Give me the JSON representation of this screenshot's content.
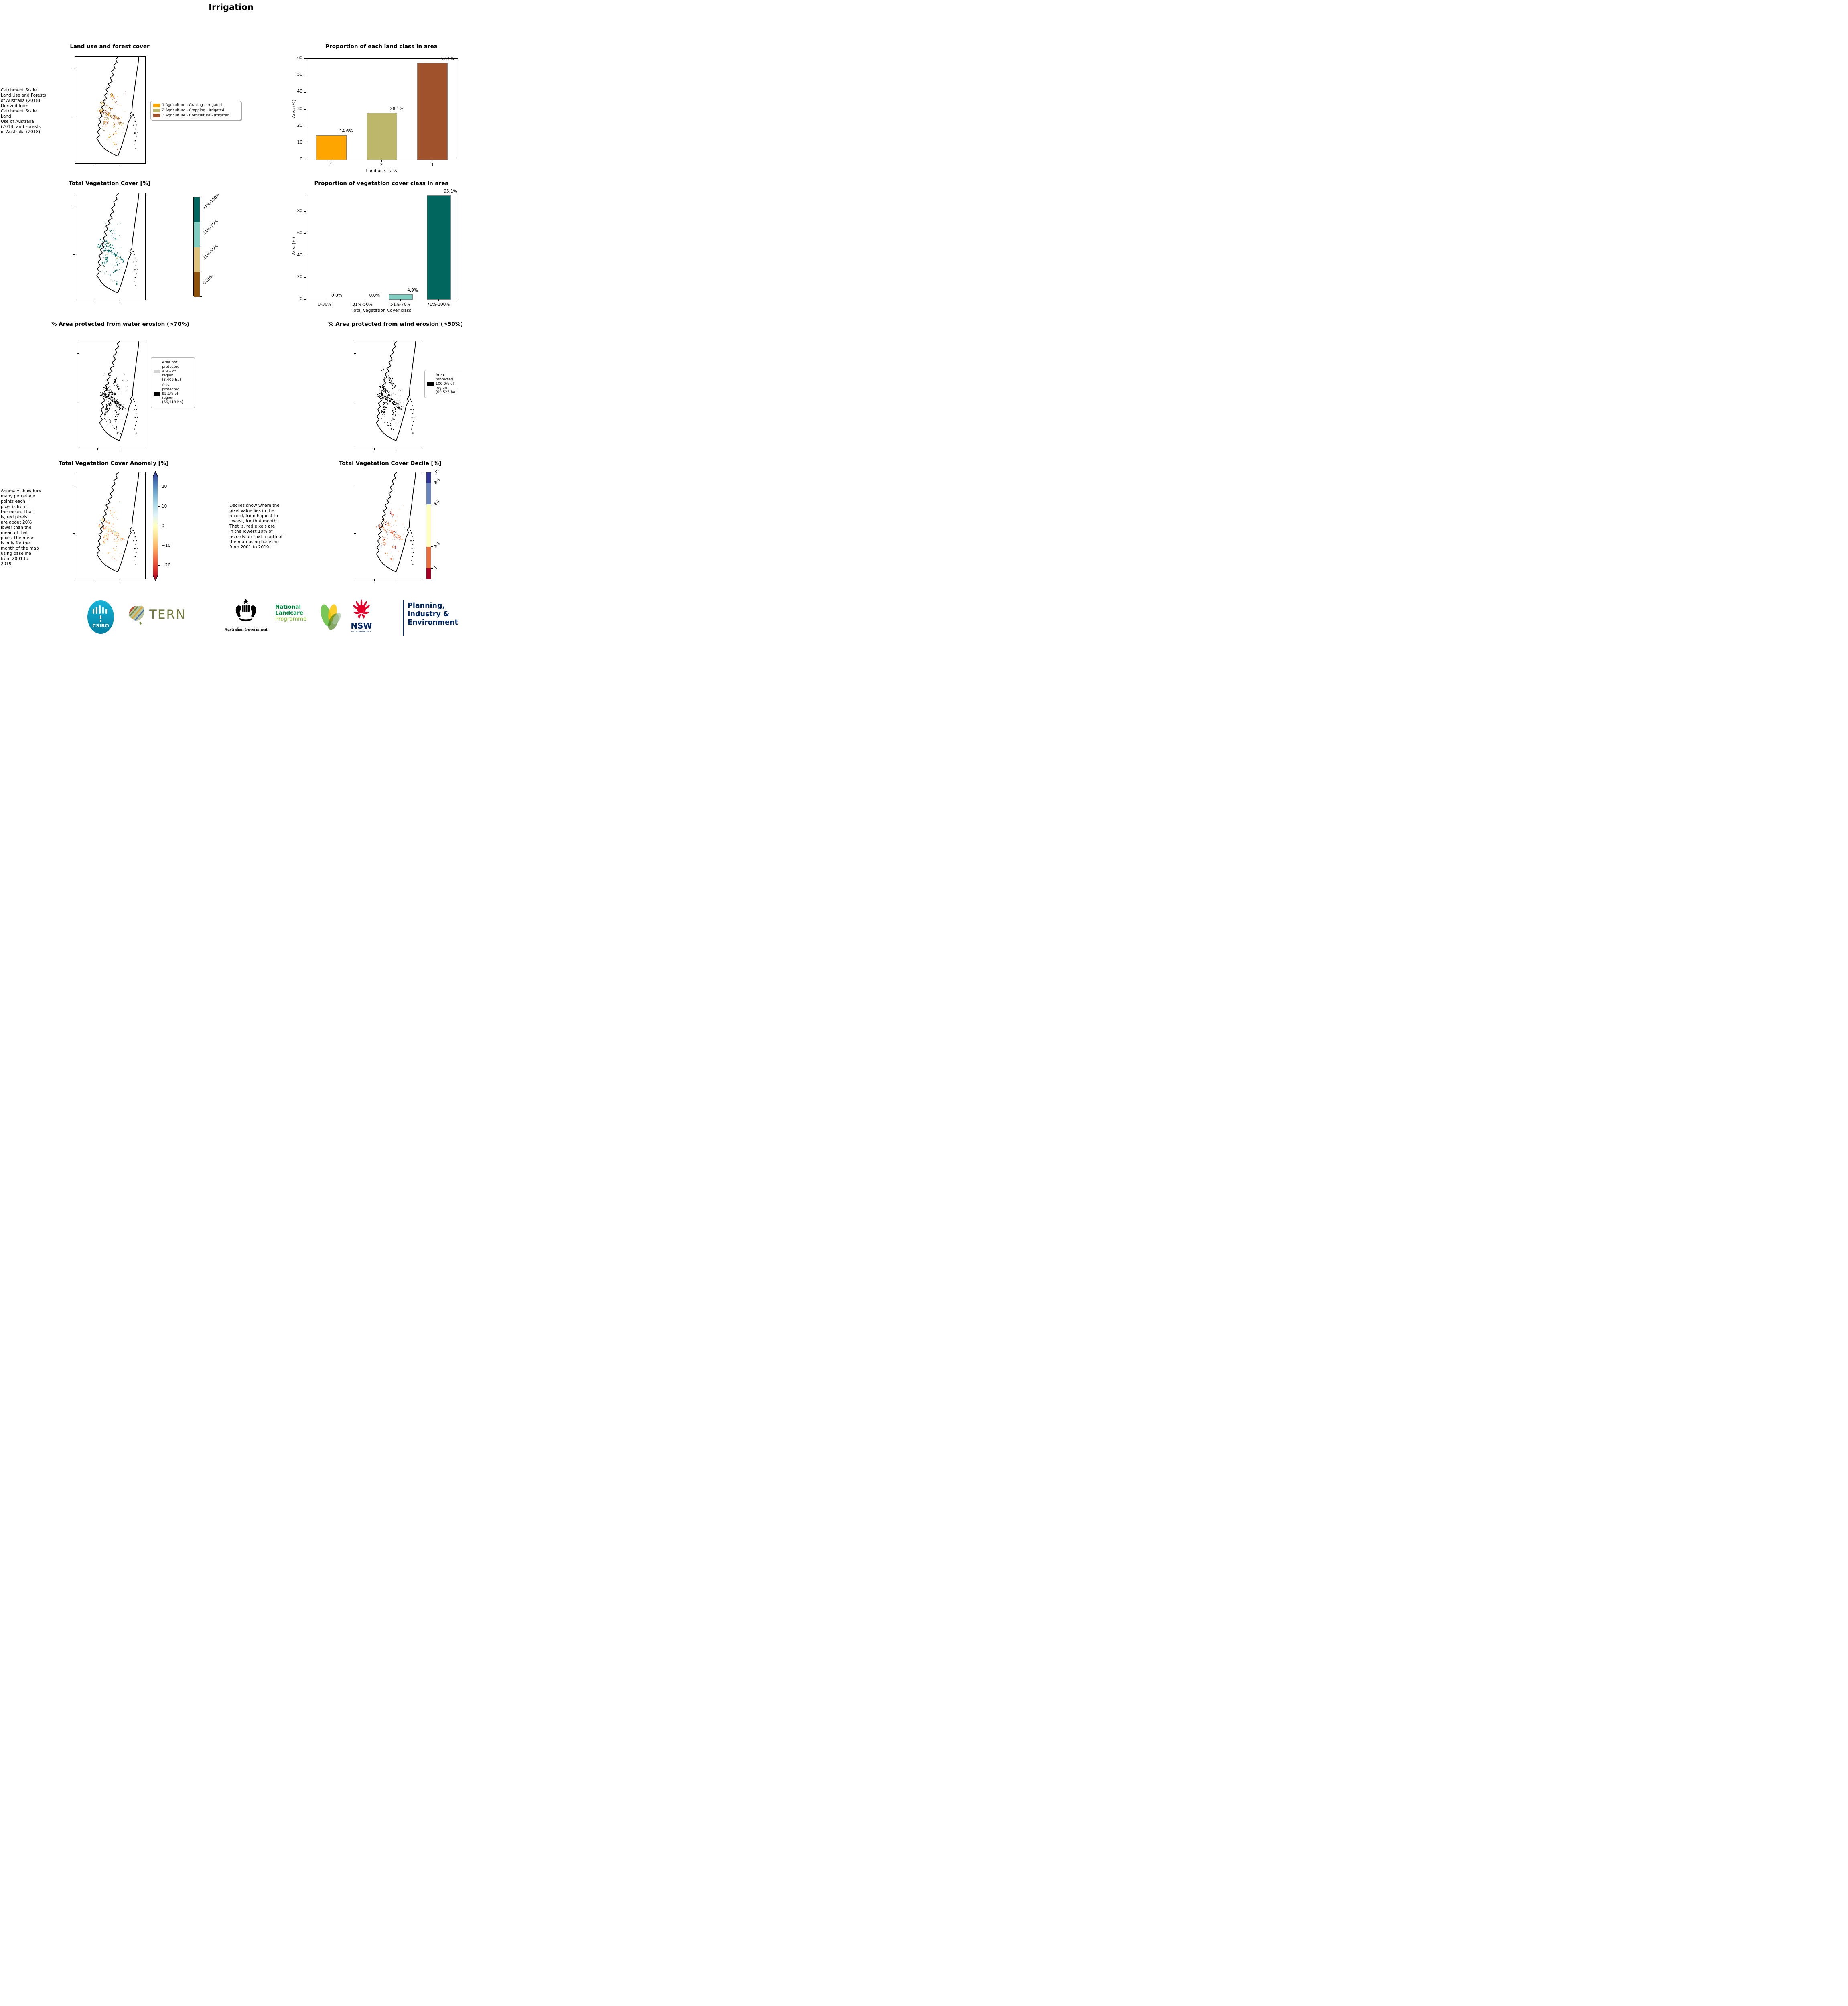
{
  "title": "Irrigation",
  "panels": {
    "land_use_title": "Land use and forest cover",
    "land_class_chart_title": "Proportion of each land class in area",
    "veg_cover_title": "Total Vegetation Cover [%]",
    "veg_class_chart_title": "Proportion of vegetation cover class in area",
    "water_title": "% Area protected from water erosion (>70%)",
    "wind_title": "% Area protected from wind erosion (>50%)",
    "anomaly_title": "Total Vegetation Cover Anomaly [%]",
    "decile_title": "Total Vegetation Cover Decile [%]"
  },
  "notes": {
    "land_use": " Catchment Scale\nLand Use and Forests\nof Australia (2018)\nDerived from\nCatchment Scale Land\nUse of Australia\n(2018) and Forests\nof Australia (2018)",
    "anomaly": "Anomaly show how\nmany percetage\npoints each\npixel is from\nthe mean. That\nis, red pixels\nare about 20%\nlower than the\nmean of that\npixel. The mean\nis only for the\nmonth of the map\nusing baseline\nfrom 2001 to\n2019.",
    "decile": "Deciles show where the\npixel value lies in the\nrecord, from highest to\nlowest, for that month.\nThat is, red pixels are\nin the lowest 10% of\nrecords for that month of\nthe map using baseline\nfrom 2001 to 2019."
  },
  "legends": {
    "land_use": [
      {
        "label": "1 Agriculture - Grazing - Irrigated",
        "color": "#FFA500"
      },
      {
        "label": "2 Agriculture - Cropping - Irrigated",
        "color": "#BDB76B"
      },
      {
        "label": "3 Agriculture - Horticulture - Irrigated",
        "color": "#A0522D"
      }
    ],
    "water": [
      {
        "label": "Area not protected 4.9% of region (3,406 ha)",
        "color": "#d3d3d3"
      },
      {
        "label": "Area protected 95.1% of region (66,118 ha)",
        "color": "#000000"
      }
    ],
    "wind": [
      {
        "label": "Area protected 100.0% of region (69,525 ha)",
        "color": "#000000"
      }
    ]
  },
  "colorbars": {
    "veg": {
      "labels": [
        "71%-100%",
        "51%-70%",
        "31%-50%",
        "0-30%"
      ],
      "colors": [
        "#01665e",
        "#80cdc1",
        "#dfc27d",
        "#8c510a"
      ]
    },
    "anomaly": {
      "ticks": [
        "20",
        "10",
        "0",
        "−10",
        "−20"
      ],
      "gradient": [
        "#313695",
        "#4575b4",
        "#74add1",
        "#abd9e9",
        "#e0f3f8",
        "#ffffbf",
        "#fee090",
        "#fdae61",
        "#f46d43",
        "#d73027",
        "#a50026"
      ]
    },
    "decile": {
      "labels": [
        "10",
        "8-9",
        "4-7",
        "2-3",
        "1"
      ],
      "colors": [
        "#313695",
        "#6b84bc",
        "#ffffbf",
        "#e8703f",
        "#a50026"
      ],
      "fractions": [
        0.1,
        0.2,
        0.4,
        0.2,
        0.1
      ]
    }
  },
  "chart_data": [
    {
      "type": "bar",
      "title": "Proportion of each land class in area",
      "categories": [
        "1",
        "2",
        "3"
      ],
      "values": [
        14.6,
        28.1,
        57.4
      ],
      "value_labels": [
        "14.6%",
        "28.1%",
        "57.4%"
      ],
      "colors": [
        "#FFA500",
        "#BDB76B",
        "#A0522D"
      ],
      "xlabel": "Land use class",
      "ylabel": "Area (%)",
      "ylim": [
        0,
        60
      ],
      "yticks": [
        0,
        10,
        20,
        30,
        40,
        50,
        60
      ],
      "legend_position": "none",
      "grid": false
    },
    {
      "type": "bar",
      "title": "Proportion of vegetation cover class in area",
      "categories": [
        "0-30%",
        "31%-50%",
        "51%-70%",
        "71%-100%"
      ],
      "values": [
        0.0,
        0.0,
        4.9,
        95.1
      ],
      "value_labels": [
        "0.0%",
        "0.0%",
        "4.9%",
        "95.1%"
      ],
      "colors": [
        "#8c510a",
        "#dfc27d",
        "#80cdc1",
        "#01665e"
      ],
      "xlabel": "Total Vegetation Cover class",
      "ylabel": "Area (%)",
      "ylim": [
        0,
        97
      ],
      "yticks": [
        0,
        20,
        40,
        60,
        80
      ],
      "legend_position": "none",
      "grid": false
    }
  ],
  "footer": {
    "csiro": "CSIRO",
    "tern": "TERN",
    "aus_gov": "Australian Government",
    "landcare_lines": [
      "National",
      "Landcare",
      "Programme"
    ],
    "nsw": "NSW",
    "nsw_sub": "GOVERNMENT",
    "planning_lines": [
      "Planning,",
      "Industry &",
      "Environment"
    ],
    "colors": {
      "csiro_teal": "#00a9ce",
      "tern_olive": "#747a3e",
      "landcare_green": "#00843D",
      "landcare_light_green": "#78BE20",
      "nsw_red": "#E4002B",
      "nsw_navy": "#002664"
    }
  }
}
